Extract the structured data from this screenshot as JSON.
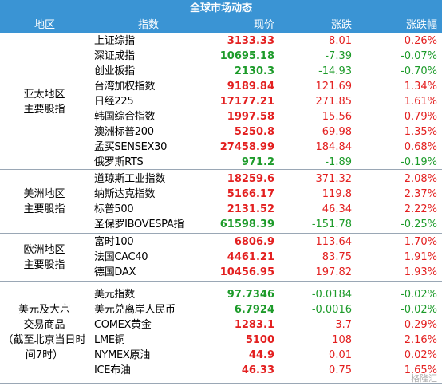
{
  "table": {
    "title": "全球市场动态",
    "headers": {
      "region": "地区",
      "index": "指数",
      "price": "现价",
      "change": "涨跌",
      "pct": "涨跌幅"
    },
    "groups": [
      {
        "region": "亚太地区\n主要股指",
        "rows": [
          {
            "name": "上证综指",
            "price": "3133.33",
            "change": "8.01",
            "pct": "0.26%",
            "dir": "up"
          },
          {
            "name": "深证成指",
            "price": "10695.18",
            "change": "-7.39",
            "pct": "-0.07%",
            "dir": "down"
          },
          {
            "name": "创业板指",
            "price": "2130.3",
            "change": "-14.93",
            "pct": "-0.70%",
            "dir": "down"
          },
          {
            "name": "台湾加权指数",
            "price": "9189.84",
            "change": "121.69",
            "pct": "1.34%",
            "dir": "up"
          },
          {
            "name": "日经225",
            "price": "17177.21",
            "change": "271.85",
            "pct": "1.61%",
            "dir": "up"
          },
          {
            "name": "韩国综合指数",
            "price": "1997.58",
            "change": "15.56",
            "pct": "0.79%",
            "dir": "up"
          },
          {
            "name": "澳洲标普200",
            "price": "5250.8",
            "change": "69.98",
            "pct": "1.35%",
            "dir": "up"
          },
          {
            "name": "孟买SENSEX30",
            "price": "27458.99",
            "change": "184.84",
            "pct": "0.68%",
            "dir": "up"
          },
          {
            "name": "俄罗斯RTS",
            "price": "971.2",
            "change": "-1.89",
            "pct": "-0.19%",
            "dir": "down"
          }
        ]
      },
      {
        "region": "美洲地区\n主要股指",
        "rows": [
          {
            "name": "道琼斯工业指数",
            "price": "18259.6",
            "change": "371.32",
            "pct": "2.08%",
            "dir": "up"
          },
          {
            "name": "纳斯达克指数",
            "price": "5166.17",
            "change": "119.8",
            "pct": "2.37%",
            "dir": "up"
          },
          {
            "name": "标普500",
            "price": "2131.52",
            "change": "46.34",
            "pct": "2.22%",
            "dir": "up"
          },
          {
            "name": "圣保罗IBOVESPA指",
            "price": "61598.39",
            "change": "-151.78",
            "pct": "-0.25%",
            "dir": "down"
          }
        ]
      },
      {
        "region": "欧洲地区\n主要股指",
        "rows": [
          {
            "name": "富时100",
            "price": "6806.9",
            "change": "113.64",
            "pct": "1.70%",
            "dir": "up"
          },
          {
            "name": "法国CAC40",
            "price": "4461.21",
            "change": "83.75",
            "pct": "1.91%",
            "dir": "up"
          },
          {
            "name": "德国DAX",
            "price": "10456.95",
            "change": "197.82",
            "pct": "1.93%",
            "dir": "up"
          }
        ]
      },
      {
        "region": "美元及大宗\n交易商品\n（截至北京当日时\n间7时）",
        "rows": [
          {
            "name": "美元指数",
            "price": "97.7346",
            "change": "-0.0184",
            "pct": "-0.02%",
            "dir": "down"
          },
          {
            "name": "美元兑离岸人民币",
            "price": "6.7924",
            "change": "-0.0016",
            "pct": "-0.02%",
            "dir": "down"
          },
          {
            "name": "COMEX黄金",
            "price": "1283.1",
            "change": "3.7",
            "pct": "0.29%",
            "dir": "up"
          },
          {
            "name": "LME铜",
            "price": "5100",
            "change": "108",
            "pct": "2.16%",
            "dir": "up"
          },
          {
            "name": "NYMEX原油",
            "price": "44.9",
            "change": "0.01",
            "pct": "0.02%",
            "dir": "up"
          },
          {
            "name": "ICE布油",
            "price": "46.33",
            "change": "0.75",
            "pct": "1.65%",
            "dir": "up"
          }
        ]
      }
    ]
  },
  "watermark": "格隆汇",
  "colors": {
    "header_bg": "#3a94d4",
    "up": "#e32020",
    "down": "#1d9b2a"
  },
  "chart_data": {
    "type": "table",
    "title": "全球市场动态",
    "columns": [
      "地区",
      "指数",
      "现价",
      "涨跌",
      "涨跌幅"
    ],
    "rows": [
      [
        "亚太地区主要股指",
        "上证综指",
        3133.33,
        8.01,
        "0.26%"
      ],
      [
        "亚太地区主要股指",
        "深证成指",
        10695.18,
        -7.39,
        "-0.07%"
      ],
      [
        "亚太地区主要股指",
        "创业板指",
        2130.3,
        -14.93,
        "-0.70%"
      ],
      [
        "亚太地区主要股指",
        "台湾加权指数",
        9189.84,
        121.69,
        "1.34%"
      ],
      [
        "亚太地区主要股指",
        "日经225",
        17177.21,
        271.85,
        "1.61%"
      ],
      [
        "亚太地区主要股指",
        "韩国综合指数",
        1997.58,
        15.56,
        "0.79%"
      ],
      [
        "亚太地区主要股指",
        "澳洲标普200",
        5250.8,
        69.98,
        "1.35%"
      ],
      [
        "亚太地区主要股指",
        "孟买SENSEX30",
        27458.99,
        184.84,
        "0.68%"
      ],
      [
        "亚太地区主要股指",
        "俄罗斯RTS",
        971.2,
        -1.89,
        "-0.19%"
      ],
      [
        "美洲地区主要股指",
        "道琼斯工业指数",
        18259.6,
        371.32,
        "2.08%"
      ],
      [
        "美洲地区主要股指",
        "纳斯达克指数",
        5166.17,
        119.8,
        "2.37%"
      ],
      [
        "美洲地区主要股指",
        "标普500",
        2131.52,
        46.34,
        "2.22%"
      ],
      [
        "美洲地区主要股指",
        "圣保罗IBOVESPA指",
        61598.39,
        -151.78,
        "-0.25%"
      ],
      [
        "欧洲地区主要股指",
        "富时100",
        6806.9,
        113.64,
        "1.70%"
      ],
      [
        "欧洲地区主要股指",
        "法国CAC40",
        4461.21,
        83.75,
        "1.91%"
      ],
      [
        "欧洲地区主要股指",
        "德国DAX",
        10456.95,
        197.82,
        "1.93%"
      ],
      [
        "美元及大宗交易商品（截至北京当日时间7时）",
        "美元指数",
        97.7346,
        -0.0184,
        "-0.02%"
      ],
      [
        "美元及大宗交易商品（截至北京当日时间7时）",
        "美元兑离岸人民币",
        6.7924,
        -0.0016,
        "-0.02%"
      ],
      [
        "美元及大宗交易商品（截至北京当日时间7时）",
        "COMEX黄金",
        1283.1,
        3.7,
        "0.29%"
      ],
      [
        "美元及大宗交易商品（截至北京当日时间7时）",
        "LME铜",
        5100,
        108,
        "2.16%"
      ],
      [
        "美元及大宗交易商品（截至北京当日时间7时）",
        "NYMEX原油",
        44.9,
        0.01,
        "0.02%"
      ],
      [
        "美元及大宗交易商品（截至北京当日时间7时）",
        "ICE布油",
        46.33,
        0.75,
        "1.65%"
      ]
    ]
  }
}
